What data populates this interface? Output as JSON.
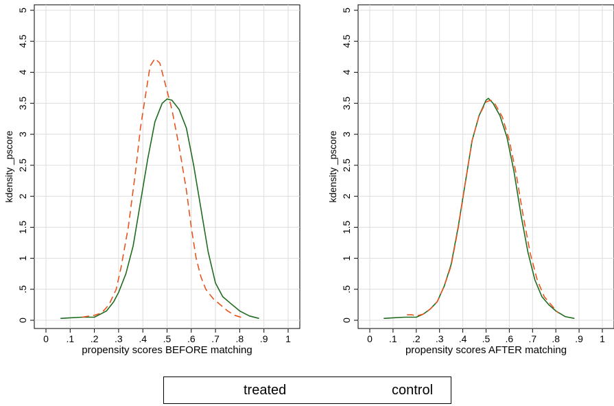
{
  "colors": {
    "treated": "#1d6b1d",
    "control": "#e8521c",
    "grid": "#dcdcdc",
    "axis": "#000000"
  },
  "legend": {
    "treated_label": "treated",
    "control_label": "control",
    "placement": "bottom-center"
  },
  "chart_data": [
    {
      "type": "line",
      "title": "",
      "xlabel": "propensity scores BEFORE matching",
      "ylabel": "kdensity _pscore",
      "xlim": [
        0,
        1
      ],
      "ylim": [
        0,
        5
      ],
      "xticks": [
        0,
        0.1,
        0.2,
        0.3,
        0.4,
        0.5,
        0.6,
        0.7,
        0.8,
        0.9,
        1
      ],
      "xtick_labels": [
        "0",
        ".1",
        ".2",
        ".3",
        ".4",
        ".5",
        ".6",
        ".7",
        ".8",
        ".9",
        "1"
      ],
      "yticks": [
        0,
        0.5,
        1,
        1.5,
        2,
        2.5,
        3,
        3.5,
        4,
        4.5,
        5
      ],
      "ytick_labels": [
        "0",
        ".5",
        "1",
        "1.5",
        "2",
        "2.5",
        "3",
        "3.5",
        "4",
        "4.5",
        "5"
      ],
      "grid": true,
      "series": [
        {
          "name": "treated",
          "style": "solid",
          "x": [
            0.06,
            0.1,
            0.15,
            0.2,
            0.25,
            0.28,
            0.3,
            0.33,
            0.36,
            0.39,
            0.42,
            0.45,
            0.48,
            0.5,
            0.52,
            0.55,
            0.58,
            0.61,
            0.64,
            0.67,
            0.7,
            0.73,
            0.76,
            0.8,
            0.84,
            0.88
          ],
          "y": [
            0.03,
            0.04,
            0.05,
            0.05,
            0.15,
            0.3,
            0.45,
            0.75,
            1.2,
            1.9,
            2.6,
            3.2,
            3.5,
            3.57,
            3.55,
            3.4,
            3.1,
            2.5,
            1.8,
            1.1,
            0.6,
            0.38,
            0.28,
            0.15,
            0.07,
            0.03
          ]
        },
        {
          "name": "control",
          "style": "dashed",
          "x": [
            0.15,
            0.18,
            0.2,
            0.23,
            0.26,
            0.29,
            0.31,
            0.34,
            0.37,
            0.39,
            0.41,
            0.43,
            0.45,
            0.47,
            0.49,
            0.52,
            0.55,
            0.58,
            0.6,
            0.62,
            0.64,
            0.66,
            0.69,
            0.72,
            0.75,
            0.78,
            0.82
          ],
          "y": [
            0.05,
            0.07,
            0.08,
            0.12,
            0.25,
            0.5,
            0.85,
            1.5,
            2.4,
            3.1,
            3.6,
            4.1,
            4.22,
            4.15,
            3.85,
            3.4,
            2.8,
            2.1,
            1.5,
            1.0,
            0.7,
            0.5,
            0.35,
            0.25,
            0.15,
            0.08,
            0.03
          ]
        }
      ]
    },
    {
      "type": "line",
      "title": "",
      "xlabel": "propensity scores AFTER matching",
      "ylabel": "kdensity _pscore",
      "xlim": [
        0,
        1
      ],
      "ylim": [
        0,
        5
      ],
      "xticks": [
        0,
        0.1,
        0.2,
        0.3,
        0.4,
        0.5,
        0.6,
        0.7,
        0.8,
        0.9,
        1
      ],
      "xtick_labels": [
        "0",
        ".1",
        ".2",
        ".3",
        ".4",
        ".5",
        ".6",
        ".7",
        ".8",
        ".9",
        "1"
      ],
      "yticks": [
        0,
        0.5,
        1,
        1.5,
        2,
        2.5,
        3,
        3.5,
        4,
        4.5,
        5
      ],
      "ytick_labels": [
        "0",
        ".5",
        "1",
        "1.5",
        "2",
        "2.5",
        "3",
        "3.5",
        "4",
        "4.5",
        "5"
      ],
      "grid": true,
      "series": [
        {
          "name": "treated",
          "style": "solid",
          "x": [
            0.06,
            0.1,
            0.15,
            0.2,
            0.23,
            0.26,
            0.29,
            0.32,
            0.35,
            0.38,
            0.41,
            0.44,
            0.47,
            0.5,
            0.51,
            0.53,
            0.56,
            0.59,
            0.62,
            0.65,
            0.68,
            0.71,
            0.74,
            0.77,
            0.8,
            0.84,
            0.88
          ],
          "y": [
            0.03,
            0.04,
            0.05,
            0.05,
            0.1,
            0.18,
            0.3,
            0.55,
            0.9,
            1.5,
            2.2,
            2.9,
            3.3,
            3.55,
            3.58,
            3.5,
            3.3,
            2.95,
            2.4,
            1.7,
            1.1,
            0.65,
            0.38,
            0.25,
            0.15,
            0.06,
            0.03
          ]
        },
        {
          "name": "control",
          "style": "dashed",
          "x": [
            0.16,
            0.18,
            0.2,
            0.23,
            0.26,
            0.29,
            0.32,
            0.35,
            0.38,
            0.41,
            0.44,
            0.47,
            0.5,
            0.52,
            0.54,
            0.57,
            0.6,
            0.63,
            0.66,
            0.69,
            0.72,
            0.75,
            0.78,
            0.81
          ],
          "y": [
            0.09,
            0.09,
            0.07,
            0.1,
            0.18,
            0.3,
            0.55,
            0.88,
            1.48,
            2.2,
            2.9,
            3.3,
            3.52,
            3.55,
            3.48,
            3.28,
            2.9,
            2.35,
            1.68,
            1.08,
            0.65,
            0.38,
            0.25,
            0.12
          ]
        }
      ]
    }
  ]
}
